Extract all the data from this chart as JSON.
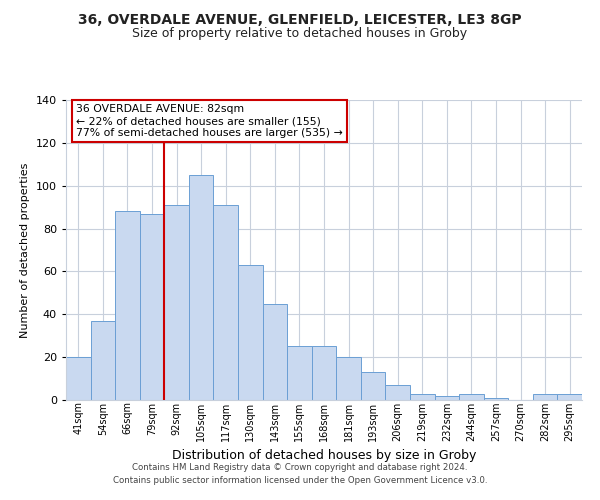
{
  "title": "36, OVERDALE AVENUE, GLENFIELD, LEICESTER, LE3 8GP",
  "subtitle": "Size of property relative to detached houses in Groby",
  "xlabel": "Distribution of detached houses by size in Groby",
  "ylabel": "Number of detached properties",
  "bar_labels": [
    "41sqm",
    "54sqm",
    "66sqm",
    "79sqm",
    "92sqm",
    "105sqm",
    "117sqm",
    "130sqm",
    "143sqm",
    "155sqm",
    "168sqm",
    "181sqm",
    "193sqm",
    "206sqm",
    "219sqm",
    "232sqm",
    "244sqm",
    "257sqm",
    "270sqm",
    "282sqm",
    "295sqm"
  ],
  "bar_values": [
    20,
    37,
    88,
    87,
    91,
    105,
    91,
    63,
    45,
    25,
    25,
    20,
    13,
    7,
    3,
    2,
    3,
    1,
    0,
    3,
    3
  ],
  "bar_color": "#c9d9f0",
  "bar_edge_color": "#6b9fd4",
  "vline_x_index": 3,
  "vline_color": "#cc0000",
  "ylim": [
    0,
    140
  ],
  "yticks": [
    0,
    20,
    40,
    60,
    80,
    100,
    120,
    140
  ],
  "annotation_title": "36 OVERDALE AVENUE: 82sqm",
  "annotation_line1": "← 22% of detached houses are smaller (155)",
  "annotation_line2": "77% of semi-detached houses are larger (535) →",
  "annotation_box_color": "#ffffff",
  "annotation_box_edge_color": "#cc0000",
  "footer_line1": "Contains HM Land Registry data © Crown copyright and database right 2024.",
  "footer_line2": "Contains public sector information licensed under the Open Government Licence v3.0.",
  "background_color": "#ffffff",
  "grid_color": "#c8d0dc"
}
